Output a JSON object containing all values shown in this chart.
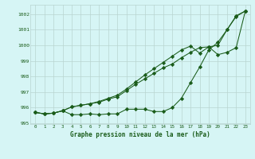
{
  "x": [
    0,
    1,
    2,
    3,
    4,
    5,
    6,
    7,
    8,
    9,
    10,
    11,
    12,
    13,
    14,
    15,
    16,
    17,
    18,
    19,
    20,
    21,
    22,
    23
  ],
  "series1": [
    995.7,
    995.6,
    995.65,
    995.8,
    995.55,
    995.55,
    995.6,
    995.55,
    995.6,
    995.6,
    995.9,
    995.9,
    995.9,
    995.75,
    995.75,
    996.0,
    996.6,
    997.6,
    998.6,
    999.7,
    1000.2,
    1001.0,
    1001.85,
    1002.2
  ],
  "series2": [
    995.7,
    995.6,
    995.65,
    995.8,
    996.05,
    996.15,
    996.25,
    996.35,
    996.55,
    996.7,
    997.1,
    997.5,
    997.85,
    998.2,
    998.55,
    998.8,
    999.2,
    999.55,
    999.85,
    999.9,
    999.4,
    999.55,
    999.85,
    1002.2
  ],
  "series3": [
    995.7,
    995.6,
    995.65,
    995.8,
    996.05,
    996.15,
    996.25,
    996.4,
    996.6,
    996.8,
    997.2,
    997.65,
    998.1,
    998.5,
    998.9,
    999.3,
    999.7,
    999.95,
    999.5,
    999.9,
    1000.0,
    1001.0,
    1001.9,
    1002.2
  ],
  "ylim": [
    994.95,
    1002.6
  ],
  "yticks": [
    995,
    996,
    997,
    998,
    999,
    1000,
    1001,
    1002
  ],
  "xlim": [
    -0.5,
    23.5
  ],
  "xticks": [
    0,
    1,
    2,
    3,
    4,
    5,
    6,
    7,
    8,
    9,
    10,
    11,
    12,
    13,
    14,
    15,
    16,
    17,
    18,
    19,
    20,
    21,
    22,
    23
  ],
  "xlabel": "Graphe pression niveau de la mer (hPa)",
  "line_color": "#1a5c1a",
  "bg_color": "#d6f5f5",
  "grid_color": "#b8d4d0",
  "marker": "D",
  "marker_size": 2.2,
  "linewidth": 0.75
}
